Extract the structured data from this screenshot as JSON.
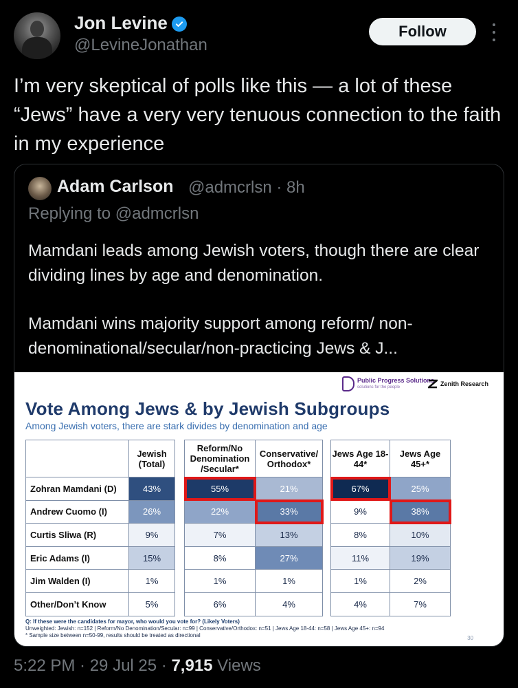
{
  "author": {
    "name": "Jon Levine",
    "handle": "@LevineJonathan"
  },
  "follow_label": "Follow",
  "tweet_text": "I’m very skeptical of polls like this — a lot of these “Jews” have a very very tenuous connection to the faith in my experience",
  "quote": {
    "name": "Adam Carlson",
    "handle_time": "@admcrlsn · 8h",
    "replying": "Replying to @admcrlsn",
    "text1": "Mamdani leads among Jewish voters, though there are clear dividing lines by age and denomination.",
    "text2": "Mamdani wins majority support among reform/ non-denominational/secular/non-practicing Jews & J..."
  },
  "poll": {
    "logo1": "Public Progress Solutions",
    "logo1_sub": "solutions for the people",
    "logo2": "Zenith Research",
    "title": "Vote Among Jews & by Jewish Subgroups",
    "subtitle": "Among Jewish voters, there are stark divides by denomination and age",
    "headers": [
      "Jewish (Total)",
      "Reform/No Denomination /Secular*",
      "Conservative/ Orthodox*",
      "Jews Age 18-44*",
      "Jews Age 45+*"
    ],
    "rows": [
      {
        "label": "Zohran Mamdani (D)",
        "values": [
          "43%",
          "55%",
          "21%",
          "67%",
          "25%"
        ]
      },
      {
        "label": "Andrew Cuomo (I)",
        "values": [
          "26%",
          "22%",
          "33%",
          "9%",
          "38%"
        ]
      },
      {
        "label": "Curtis Sliwa (R)",
        "values": [
          "9%",
          "7%",
          "13%",
          "8%",
          "10%"
        ]
      },
      {
        "label": "Eric Adams (I)",
        "values": [
          "15%",
          "8%",
          "27%",
          "11%",
          "19%"
        ]
      },
      {
        "label": "Jim Walden (I)",
        "values": [
          "1%",
          "1%",
          "1%",
          "1%",
          "2%"
        ]
      },
      {
        "label": "Other/Don’t Know",
        "values": [
          "5%",
          "6%",
          "4%",
          "4%",
          "7%"
        ]
      }
    ],
    "question": "Q: If these were the candidates for mayor, who would you vote for? (Likely Voters)",
    "unweighted": "Unweighted: Jewish: n=152 | Reform/No Denomination/Secular: n=99 | Conservative/Orthodox: n=51 | Jews Age 18-44: n=58 | Jews Age 45+: n=94",
    "note": "* Sample size between n=50-99, results should be treated as directional",
    "page": "30"
  },
  "meta": {
    "time": "5:22 PM · 29 Jul 25 · ",
    "views_num": "7,915",
    "views_label": " Views"
  },
  "colors": {
    "accent": "#1d9bf0",
    "highlight": "#e01818"
  }
}
